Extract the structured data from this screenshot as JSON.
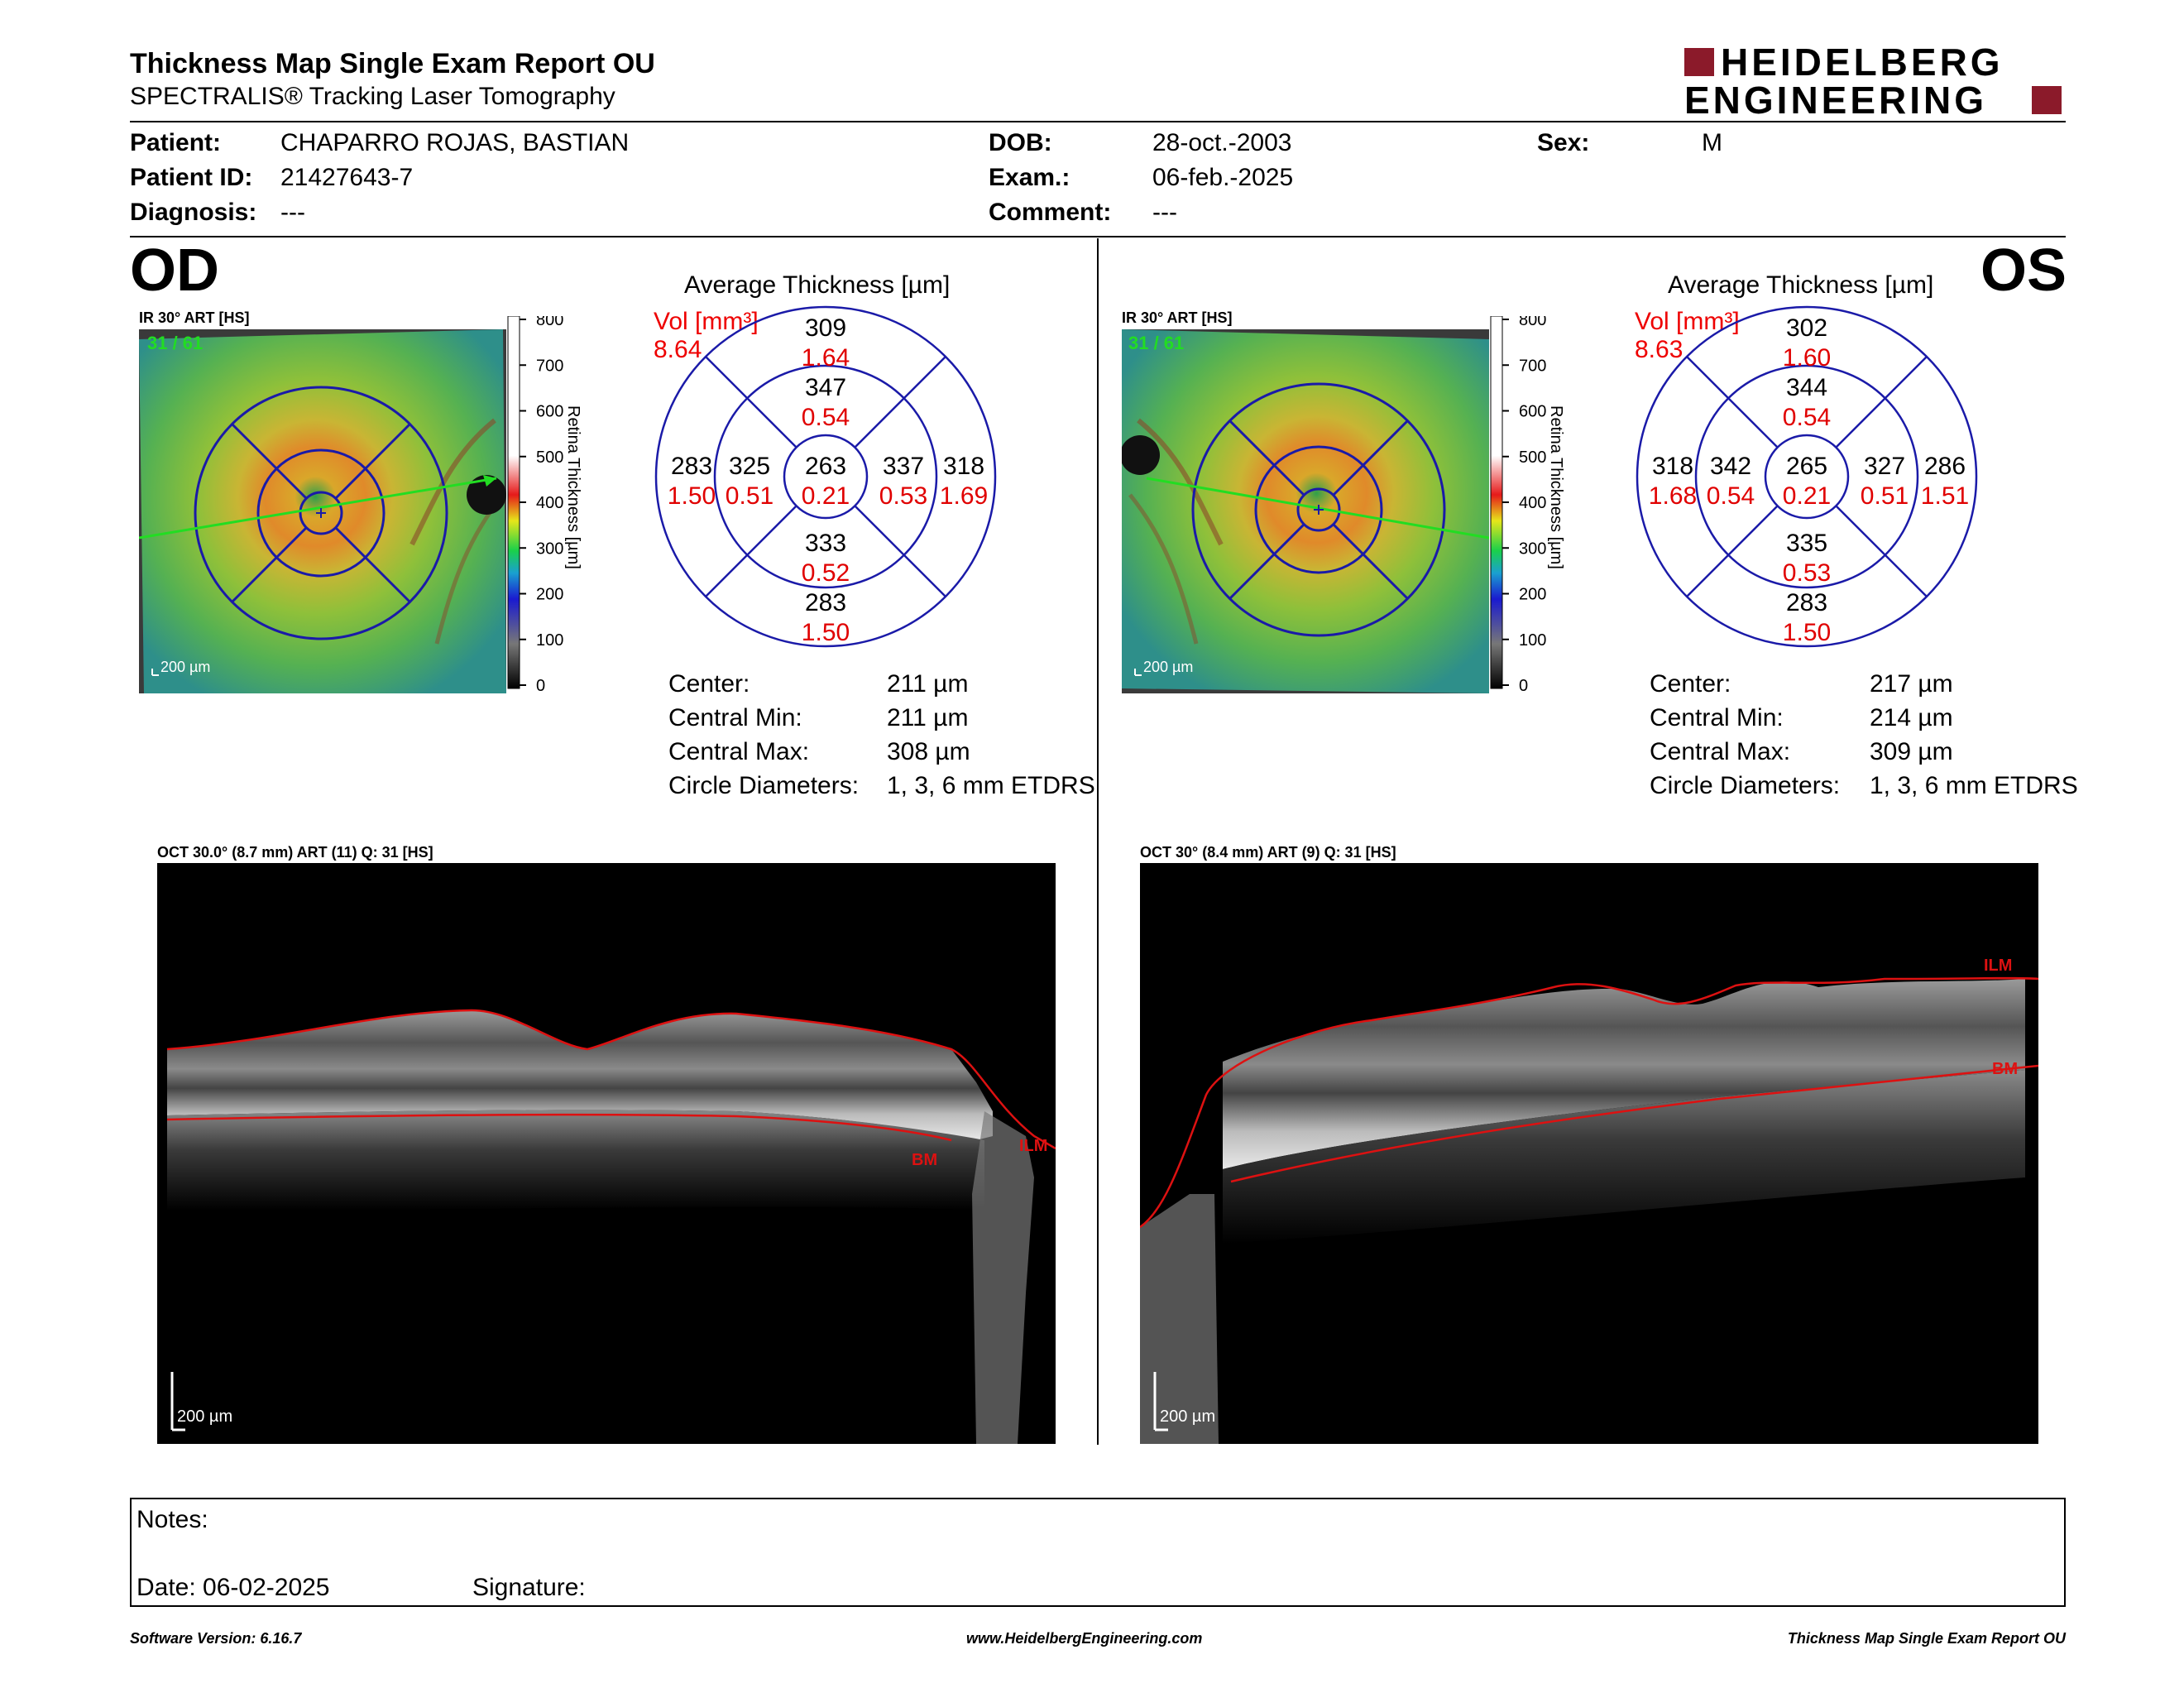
{
  "header": {
    "title": "Thickness Map Single Exam Report OU",
    "subtitle": "SPECTRALIS® Tracking Laser Tomography",
    "logo_line1": "HEIDELBERG",
    "logo_line2": "ENGINEERING",
    "logo_color": "#8b1a2a"
  },
  "patient": {
    "patient_label": "Patient:",
    "patient_value": "CHAPARRO ROJAS, BASTIAN",
    "id_label": "Patient ID:",
    "id_value": "21427643-7",
    "diagnosis_label": "Diagnosis:",
    "diagnosis_value": "---",
    "dob_label": "DOB:",
    "dob_value": "28-oct.-2003",
    "exam_label": "Exam.:",
    "exam_value": "06-feb.-2025",
    "comment_label": "Comment:",
    "comment_value": "---",
    "sex_label": "Sex:",
    "sex_value": "M"
  },
  "scale": {
    "ticks": [
      "800",
      "700",
      "600",
      "500",
      "400",
      "300",
      "200",
      "100",
      "0"
    ],
    "label": "Retina Thickness [µm]"
  },
  "od": {
    "eye": "OD",
    "ir_label": "IR 30° ART [HS]",
    "frames": "31 / 61",
    "scalebar": "200 µm",
    "avg_title": "Average Thickness [µm]",
    "vol_label": "Vol [mm³]",
    "vol_total": "8.64",
    "sectors": {
      "outer_sup": {
        "t": "309",
        "v": "1.64"
      },
      "inner_sup": {
        "t": "347",
        "v": "0.54"
      },
      "outer_left": {
        "t": "283",
        "v": "1.50"
      },
      "inner_left": {
        "t": "325",
        "v": "0.51"
      },
      "center": {
        "t": "263",
        "v": "0.21"
      },
      "inner_right": {
        "t": "337",
        "v": "0.53"
      },
      "outer_right": {
        "t": "318",
        "v": "1.69"
      },
      "inner_inf": {
        "t": "333",
        "v": "0.52"
      },
      "outer_inf": {
        "t": "283",
        "v": "1.50"
      }
    },
    "stats": [
      {
        "label": "Center:",
        "value": "211 µm"
      },
      {
        "label": "Central Min:",
        "value": "211 µm"
      },
      {
        "label": "Central Max:",
        "value": "308 µm"
      },
      {
        "label": "Circle Diameters:",
        "value": "1, 3, 6 mm ETDRS"
      }
    ],
    "oct_label": "OCT 30.0° (8.7 mm) ART (11) Q: 31 [HS]",
    "oct_scalebar": "200 µm",
    "ilm": "ILM",
    "bm": "BM"
  },
  "os": {
    "eye": "OS",
    "ir_label": "IR 30° ART [HS]",
    "frames": "31 / 61",
    "scalebar": "200 µm",
    "avg_title": "Average Thickness [µm]",
    "vol_label": "Vol [mm³]",
    "vol_total": "8.63",
    "sectors": {
      "outer_sup": {
        "t": "302",
        "v": "1.60"
      },
      "inner_sup": {
        "t": "344",
        "v": "0.54"
      },
      "outer_left": {
        "t": "318",
        "v": "1.68"
      },
      "inner_left": {
        "t": "342",
        "v": "0.54"
      },
      "center": {
        "t": "265",
        "v": "0.21"
      },
      "inner_right": {
        "t": "327",
        "v": "0.51"
      },
      "outer_right": {
        "t": "286",
        "v": "1.51"
      },
      "inner_inf": {
        "t": "335",
        "v": "0.53"
      },
      "outer_inf": {
        "t": "283",
        "v": "1.50"
      }
    },
    "stats": [
      {
        "label": "Center:",
        "value": "217 µm"
      },
      {
        "label": "Central Min:",
        "value": "214 µm"
      },
      {
        "label": "Central Max:",
        "value": "309 µm"
      },
      {
        "label": "Circle Diameters:",
        "value": "1, 3, 6 mm ETDRS"
      }
    ],
    "oct_label": "OCT 30° (8.4 mm) ART (9) Q: 31 [HS]",
    "oct_scalebar": "200 µm",
    "ilm": "ILM",
    "bm": "BM"
  },
  "notes": {
    "notes_label": "Notes:",
    "date_label": "Date: 06-02-2025",
    "signature_label": "Signature:"
  },
  "footer": {
    "left": "Software Version: 6.16.7",
    "center": "www.HeidelbergEngineering.com",
    "right": "Thickness Map Single Exam Report OU"
  },
  "colors": {
    "grid_blue": "#1a1aa8",
    "value_red": "#e00000",
    "scan_green": "#22dd22",
    "seg_red": "#dd1111"
  }
}
